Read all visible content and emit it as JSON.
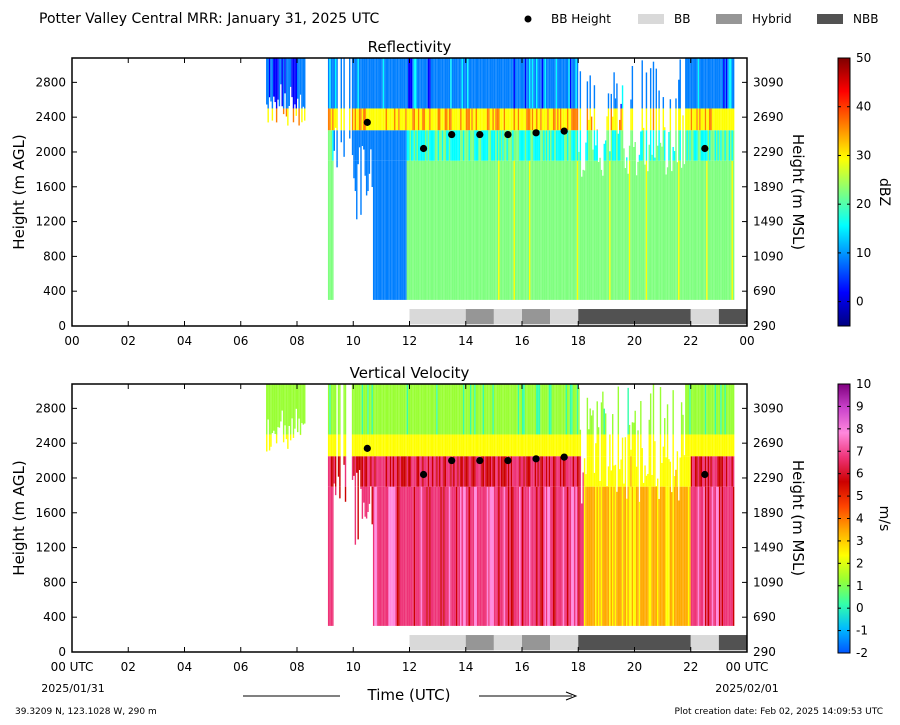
{
  "figure": {
    "title": "Potter Valley Central MRR:  January 31, 2025 UTC",
    "footer_left": "39.3209 N, 123.1028 W, 290 m",
    "footer_right": "Plot creation date: Feb 02, 2025 14:09:53 UTC",
    "x_label": "Time (UTC)",
    "x_start_label": "00 UTC",
    "x_start_date": "2025/01/31",
    "x_end_label": "00 UTC",
    "x_end_date": "2025/02/01"
  },
  "legend": [
    {
      "label": "BB Height",
      "kind": "marker",
      "color": "#000000"
    },
    {
      "label": "BB",
      "kind": "swatch",
      "color": "#d9d9d9"
    },
    {
      "label": "Hybrid",
      "kind": "swatch",
      "color": "#969696"
    },
    {
      "label": "NBB",
      "kind": "swatch",
      "color": "#525252"
    }
  ],
  "chart_data": [
    {
      "type": "heatmap",
      "title": "Reflectivity",
      "ylabel": "Height (m AGL)",
      "ylabel_right": "Height (m MSL)",
      "xlim": [
        0,
        24
      ],
      "ylim": [
        0,
        3080
      ],
      "x_ticks": [
        "00",
        "02",
        "04",
        "06",
        "08",
        "10",
        "12",
        "14",
        "16",
        "18",
        "20",
        "22",
        "00"
      ],
      "y_ticks": [
        0,
        400,
        800,
        1200,
        1600,
        2000,
        2400,
        2800
      ],
      "y_ticks_right": [
        290,
        690,
        1090,
        1490,
        1890,
        2290,
        2690,
        3090
      ],
      "colorbar": {
        "label": "dBZ",
        "range": [
          -5,
          50
        ],
        "ticks": [
          0,
          10,
          20,
          30,
          40,
          50
        ],
        "colors": [
          "#00007f",
          "#0000ff",
          "#007fff",
          "#00ffff",
          "#7fff7f",
          "#ffff00",
          "#ff7f00",
          "#ff0000",
          "#7f0000"
        ]
      },
      "bb_height": {
        "x": [
          10.5,
          12.5,
          13.5,
          14.5,
          15.5,
          16.5,
          17.5,
          22.5
        ],
        "y": [
          2340,
          2040,
          2200,
          2200,
          2200,
          2220,
          2240,
          2040
        ]
      },
      "bb_classification": [
        {
          "start": 12.0,
          "end": 14.0,
          "class": "BB"
        },
        {
          "start": 14.0,
          "end": 15.0,
          "class": "Hybrid"
        },
        {
          "start": 15.0,
          "end": 16.0,
          "class": "BB"
        },
        {
          "start": 16.0,
          "end": 17.0,
          "class": "Hybrid"
        },
        {
          "start": 17.0,
          "end": 18.0,
          "class": "BB"
        },
        {
          "start": 18.0,
          "end": 22.0,
          "class": "NBB"
        },
        {
          "start": 22.0,
          "end": 23.0,
          "class": "BB"
        },
        {
          "start": 23.0,
          "end": 24.0,
          "class": "NBB"
        }
      ]
    },
    {
      "type": "heatmap",
      "title": "Vertical Velocity",
      "ylabel": "Height (m AGL)",
      "ylabel_right": "Height (m MSL)",
      "xlim": [
        0,
        24
      ],
      "ylim": [
        0,
        3080
      ],
      "x_ticks": [
        "00 UTC",
        "02",
        "04",
        "06",
        "08",
        "10",
        "12",
        "14",
        "16",
        "18",
        "20",
        "22",
        "00 UTC"
      ],
      "y_ticks": [
        0,
        400,
        800,
        1200,
        1600,
        2000,
        2400,
        2800
      ],
      "y_ticks_right": [
        290,
        690,
        1090,
        1490,
        1890,
        2290,
        2690,
        3090
      ],
      "colorbar": {
        "label": "m/s",
        "range": [
          -2,
          10
        ],
        "ticks": [
          -2,
          -1,
          0,
          1,
          2,
          3,
          4,
          5,
          6,
          7,
          8,
          9,
          10
        ],
        "colors": [
          "#0055ff",
          "#00bbff",
          "#33ffaa",
          "#99ff33",
          "#ffff00",
          "#ffaa00",
          "#ff4400",
          "#cc0000",
          "#ee3377",
          "#ff88dd",
          "#cc44cc",
          "#800080"
        ]
      },
      "bb_height": {
        "x": [
          10.5,
          12.5,
          13.5,
          14.5,
          15.5,
          16.5,
          17.5,
          22.5
        ],
        "y": [
          2340,
          2040,
          2200,
          2200,
          2200,
          2220,
          2240,
          2040
        ]
      },
      "bb_classification": [
        {
          "start": 12.0,
          "end": 14.0,
          "class": "BB"
        },
        {
          "start": 14.0,
          "end": 15.0,
          "class": "Hybrid"
        },
        {
          "start": 15.0,
          "end": 16.0,
          "class": "BB"
        },
        {
          "start": 16.0,
          "end": 17.0,
          "class": "Hybrid"
        },
        {
          "start": 17.0,
          "end": 18.0,
          "class": "BB"
        },
        {
          "start": 18.0,
          "end": 22.0,
          "class": "NBB"
        },
        {
          "start": 22.0,
          "end": 23.0,
          "class": "BB"
        },
        {
          "start": 23.0,
          "end": 24.0,
          "class": "NBB"
        }
      ]
    }
  ]
}
